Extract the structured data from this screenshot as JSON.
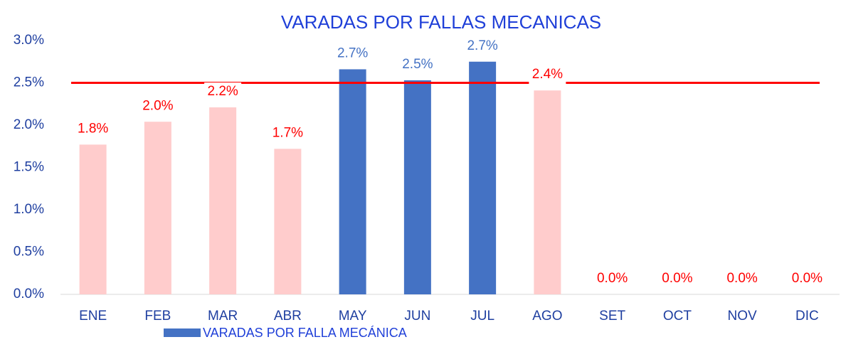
{
  "chart_data": {
    "type": "bar",
    "title": "VARADAS POR FALLAS MECANICAS",
    "categories": [
      "ENE",
      "FEB",
      "MAR",
      "ABR",
      "MAY",
      "JUN",
      "JUL",
      "AGO",
      "SET",
      "OCT",
      "NOV",
      "DIC"
    ],
    "series": [
      {
        "name": "VARADAS POR FALLA MECÁNICA",
        "color": "#4472c4",
        "values": [
          1.77,
          2.04,
          2.21,
          1.72,
          2.66,
          2.53,
          2.75,
          2.41,
          0,
          0,
          0,
          0
        ],
        "value_labels": [
          "1.8%",
          "2.0%",
          "2.2%",
          "1.7%",
          "2.7%",
          "2.5%",
          "2.7%",
          "2.4%",
          "0.0%",
          "0.0%",
          "0.0%",
          "0.0%"
        ],
        "colors": [
          "#ffcccc",
          "#ffcccc",
          "#ffcccc",
          "#ffcccc",
          "#4472c4",
          "#4472c4",
          "#4472c4",
          "#ffcccc",
          "#ffcccc",
          "#ffcccc",
          "#ffcccc",
          "#ffcccc"
        ],
        "label_colors": [
          "#ff0000",
          "#ff0000",
          "#ff0000",
          "#ff0000",
          "#4472c4",
          "#4472c4",
          "#4472c4",
          "#ff0000",
          "#ff0000",
          "#ff0000",
          "#ff0000",
          "#ff0000"
        ]
      }
    ],
    "target": 2.5,
    "target_color": "#ff0000",
    "ylim": [
      0,
      3
    ],
    "yticks": [
      {
        "value": 0,
        "label": "0.0%"
      },
      {
        "value": 0.5,
        "label": "0.5%"
      },
      {
        "value": 1,
        "label": "1.0%"
      },
      {
        "value": 1.5,
        "label": "1.5%"
      },
      {
        "value": 2,
        "label": "2.0%"
      },
      {
        "value": 2.5,
        "label": "2.5%"
      },
      {
        "value": 3,
        "label": "3.0%"
      }
    ],
    "legend": "bottom-left"
  }
}
